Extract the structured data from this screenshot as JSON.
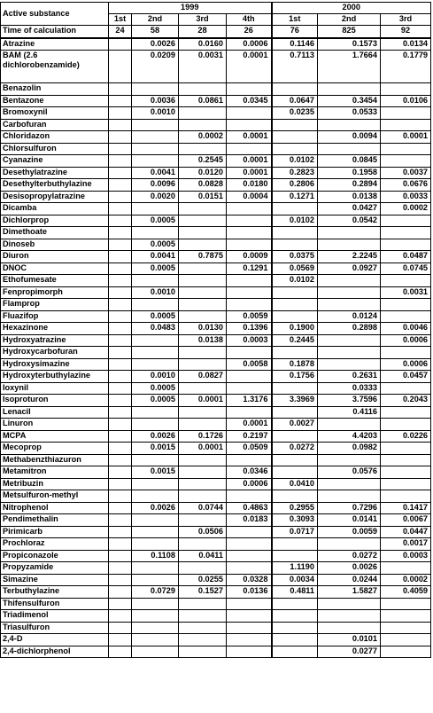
{
  "table": {
    "header_substance": "Active substance",
    "years": [
      "1999",
      "2000"
    ],
    "periods_1999": [
      "1st",
      "2nd",
      "3rd",
      "4th"
    ],
    "periods_2000": [
      "1st",
      "2nd",
      "3rd"
    ],
    "time_label": "Time of calculation",
    "times": [
      "24",
      "58",
      "28",
      "26",
      "76",
      "825",
      "92"
    ],
    "rows": [
      {
        "name": "Atrazine",
        "v": [
          "",
          "0.0026",
          "0.0160",
          "0.0006",
          "0.1146",
          "0.1573",
          "0.0134"
        ]
      },
      {
        "name": "BAM (2.6 dichlorobenzamide)",
        "v": [
          "",
          "0.0209",
          "0.0031",
          "0.0001",
          "0.7113",
          "1.7664",
          "0.1779"
        ]
      },
      {
        "name": "Benazolin",
        "v": [
          "",
          "",
          "",
          "",
          "",
          "",
          ""
        ]
      },
      {
        "name": "Bentazone",
        "v": [
          "",
          "0.0036",
          "0.0861",
          "0.0345",
          "0.0647",
          "0.3454",
          "0.0106"
        ]
      },
      {
        "name": "Bromoxynil",
        "v": [
          "",
          "0.0010",
          "",
          "",
          "0.0235",
          "0.0533",
          ""
        ]
      },
      {
        "name": "Carbofuran",
        "v": [
          "",
          "",
          "",
          "",
          "",
          "",
          ""
        ]
      },
      {
        "name": "Chloridazon",
        "v": [
          "",
          "",
          "0.0002",
          "0.0001",
          "",
          "0.0094",
          "0.0001"
        ]
      },
      {
        "name": "Chlorsulfuron",
        "v": [
          "",
          "",
          "",
          "",
          "",
          "",
          ""
        ]
      },
      {
        "name": "Cyanazine",
        "v": [
          "",
          "",
          "0.2545",
          "0.0001",
          "0.0102",
          "0.0845",
          ""
        ]
      },
      {
        "name": "Desethylatrazine",
        "v": [
          "",
          "0.0041",
          "0.0120",
          "0.0001",
          "0.2823",
          "0.1958",
          "0.0037"
        ]
      },
      {
        "name": "Desethylterbuthylazine",
        "v": [
          "",
          "0.0096",
          "0.0828",
          "0.0180",
          "0.2806",
          "0.2894",
          "0.0676"
        ]
      },
      {
        "name": "Desisopropylatrazine",
        "v": [
          "",
          "0.0020",
          "0.0151",
          "0.0004",
          "0.1271",
          "0.0138",
          "0.0033"
        ]
      },
      {
        "name": "Dicamba",
        "v": [
          "",
          "",
          "",
          "",
          "",
          "0.0427",
          "0.0002"
        ]
      },
      {
        "name": "Dichlorprop",
        "v": [
          "",
          "0.0005",
          "",
          "",
          "0.0102",
          "0.0542",
          ""
        ]
      },
      {
        "name": "Dimethoate",
        "v": [
          "",
          "",
          "",
          "",
          "",
          "",
          ""
        ]
      },
      {
        "name": "Dinoseb",
        "v": [
          "",
          "0.0005",
          "",
          "",
          "",
          "",
          ""
        ]
      },
      {
        "name": "Diuron",
        "v": [
          "",
          "0.0041",
          "0.7875",
          "0.0009",
          "0.0375",
          "2.2245",
          "0.0487"
        ]
      },
      {
        "name": "DNOC",
        "v": [
          "",
          "0.0005",
          "",
          "0.1291",
          "0.0569",
          "0.0927",
          "0.0745"
        ]
      },
      {
        "name": "Ethofumesate",
        "v": [
          "",
          "",
          "",
          "",
          "0.0102",
          "",
          ""
        ]
      },
      {
        "name": "Fenpropimorph",
        "v": [
          "",
          "0.0010",
          "",
          "",
          "",
          "",
          "0.0031"
        ]
      },
      {
        "name": "Flamprop",
        "v": [
          "",
          "",
          "",
          "",
          "",
          "",
          ""
        ]
      },
      {
        "name": "Fluazifop",
        "v": [
          "",
          "0.0005",
          "",
          "0.0059",
          "",
          "0.0124",
          ""
        ]
      },
      {
        "name": "Hexazinone",
        "v": [
          "",
          "0.0483",
          "0.0130",
          "0.1396",
          "0.1900",
          "0.2898",
          "0.0046"
        ]
      },
      {
        "name": "Hydroxyatrazine",
        "v": [
          "",
          "",
          "0.0138",
          "0.0003",
          "0.2445",
          "",
          "0.0006"
        ]
      },
      {
        "name": "Hydroxycarbofuran",
        "v": [
          "",
          "",
          "",
          "",
          "",
          "",
          ""
        ]
      },
      {
        "name": "Hydroxysimazine",
        "v": [
          "",
          "",
          "",
          "0.0058",
          "0.1878",
          "",
          "0.0006"
        ]
      },
      {
        "name": "Hydroxyterbuthylazine",
        "v": [
          "",
          "0.0010",
          "0.0827",
          "",
          "0.1756",
          "0.2631",
          "0.0457"
        ]
      },
      {
        "name": "Ioxynil",
        "v": [
          "",
          "0.0005",
          "",
          "",
          "",
          "0.0333",
          ""
        ]
      },
      {
        "name": "Isoproturon",
        "v": [
          "",
          "0.0005",
          "0.0001",
          "1.3176",
          "3.3969",
          "3.7596",
          "0.2043"
        ]
      },
      {
        "name": "Lenacil",
        "v": [
          "",
          "",
          "",
          "",
          "",
          "0.4116",
          ""
        ]
      },
      {
        "name": "Linuron",
        "v": [
          "",
          "",
          "",
          "0.0001",
          "0.0027",
          "",
          ""
        ]
      },
      {
        "name": "MCPA",
        "v": [
          "",
          "0.0026",
          "0.1726",
          "0.2197",
          "",
          "4.4203",
          "0.0226"
        ]
      },
      {
        "name": "Mecoprop",
        "v": [
          "",
          "0.0015",
          "0.0001",
          "0.0509",
          "0.0272",
          "0.0982",
          ""
        ]
      },
      {
        "name": "Methabenzthiazuron",
        "v": [
          "",
          "",
          "",
          "",
          "",
          "",
          ""
        ]
      },
      {
        "name": "Metamitron",
        "v": [
          "",
          "0.0015",
          "",
          "0.0346",
          "",
          "0.0576",
          ""
        ]
      },
      {
        "name": "Metribuzin",
        "v": [
          "",
          "",
          "",
          "0.0006",
          "0.0410",
          "",
          ""
        ]
      },
      {
        "name": "Metsulfuron-methyl",
        "v": [
          "",
          "",
          "",
          "",
          "",
          "",
          ""
        ]
      },
      {
        "name": "Nitrophenol",
        "v": [
          "",
          "0.0026",
          "0.0744",
          "0.4863",
          "0.2955",
          "0.7296",
          "0.1417"
        ]
      },
      {
        "name": "Pendimethalin",
        "v": [
          "",
          "",
          "",
          "0.0183",
          "0.3093",
          "0.0141",
          "0.0067"
        ]
      },
      {
        "name": "Pirimicarb",
        "v": [
          "",
          "",
          "0.0506",
          "",
          "0.0717",
          "0.0059",
          "0.0447"
        ]
      },
      {
        "name": "Prochloraz",
        "v": [
          "",
          "",
          "",
          "",
          "",
          "",
          "0.0017"
        ]
      },
      {
        "name": "Propiconazole",
        "v": [
          "",
          "0.1108",
          "0.0411",
          "",
          "",
          "0.0272",
          "0.0003"
        ]
      },
      {
        "name": "Propyzamide",
        "v": [
          "",
          "",
          "",
          "",
          "1.1190",
          "0.0026",
          ""
        ]
      },
      {
        "name": "Simazine",
        "v": [
          "",
          "",
          "0.0255",
          "0.0328",
          "0.0034",
          "0.0244",
          "0.0002"
        ]
      },
      {
        "name": "Terbuthylazine",
        "v": [
          "",
          "0.0729",
          "0.1527",
          "0.0136",
          "0.4811",
          "1.5827",
          "0.4059"
        ]
      },
      {
        "name": "Thifensulfuron",
        "v": [
          "",
          "",
          "",
          "",
          "",
          "",
          ""
        ]
      },
      {
        "name": "Triadimenol",
        "v": [
          "",
          "",
          "",
          "",
          "",
          "",
          ""
        ]
      },
      {
        "name": "Triasulfuron",
        "v": [
          "",
          "",
          "",
          "",
          "",
          "",
          ""
        ]
      },
      {
        "name": "2,4-D",
        "v": [
          "",
          "",
          "",
          "",
          "",
          "0.0101",
          ""
        ]
      },
      {
        "name": "2,4-dichlorphenol",
        "v": [
          "",
          "",
          "",
          "",
          "",
          "0.0277",
          ""
        ]
      }
    ]
  }
}
